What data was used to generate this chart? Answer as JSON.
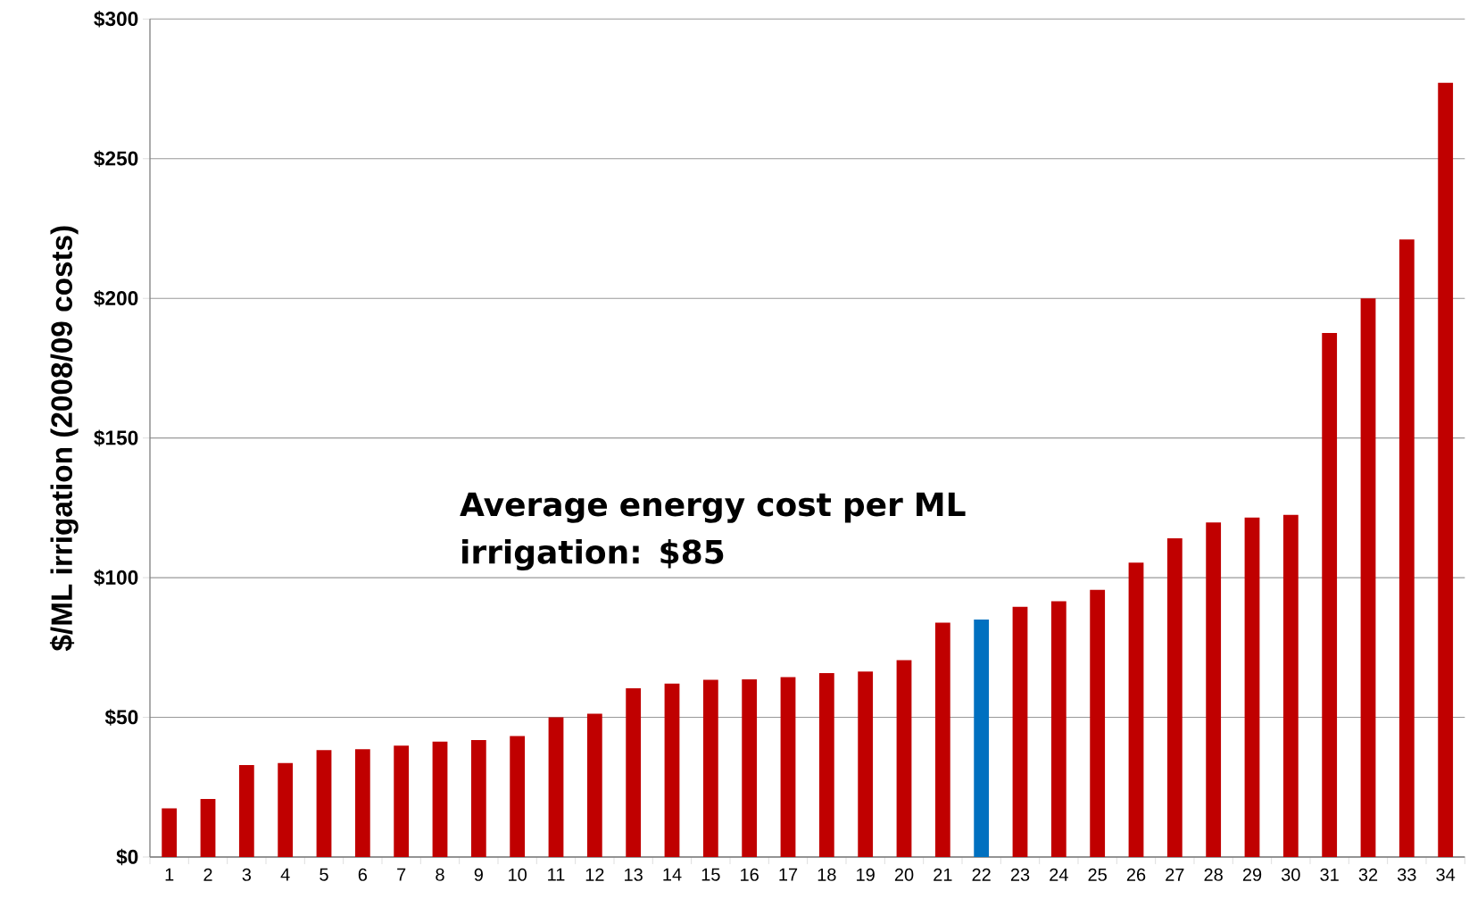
{
  "chart_data": {
    "type": "bar",
    "ylabel": "$/ML irrigation  (2008/09 costs)",
    "categories": [
      "1",
      "2",
      "3",
      "4",
      "5",
      "6",
      "7",
      "8",
      "9",
      "10",
      "11",
      "12",
      "13",
      "14",
      "15",
      "16",
      "17",
      "18",
      "19",
      "20",
      "21",
      "22",
      "23",
      "24",
      "25",
      "26",
      "27",
      "28",
      "29",
      "30",
      "31",
      "32",
      "33",
      "34"
    ],
    "values": [
      17.4,
      20.8,
      32.9,
      33.6,
      38.3,
      38.6,
      39.9,
      41.3,
      41.9,
      43.3,
      50,
      51.3,
      60.4,
      62.1,
      63.4,
      63.6,
      64.4,
      65.8,
      66.4,
      70.5,
      83.9,
      85,
      89.6,
      91.6,
      95.6,
      105.4,
      114.1,
      119.8,
      121.5,
      122.5,
      187.6,
      200,
      221.1,
      277.2
    ],
    "colors": [
      "#c00000",
      "#c00000",
      "#c00000",
      "#c00000",
      "#c00000",
      "#c00000",
      "#c00000",
      "#c00000",
      "#c00000",
      "#c00000",
      "#c00000",
      "#c00000",
      "#c00000",
      "#c00000",
      "#c00000",
      "#c00000",
      "#c00000",
      "#c00000",
      "#c00000",
      "#c00000",
      "#c00000",
      "#0070c0",
      "#c00000",
      "#c00000",
      "#c00000",
      "#c00000",
      "#c00000",
      "#c00000",
      "#c00000",
      "#c00000",
      "#c00000",
      "#c00000",
      "#c00000",
      "#c00000"
    ],
    "ylim": [
      0,
      300
    ],
    "yticks": [
      {
        "value": 0,
        "label": "$0"
      },
      {
        "value": 50,
        "label": "$50"
      },
      {
        "value": 100,
        "label": "$100"
      },
      {
        "value": 150,
        "label": "$150"
      },
      {
        "value": 200,
        "label": "$200"
      },
      {
        "value": 250,
        "label": "$250"
      },
      {
        "value": 300,
        "label": "$300"
      }
    ],
    "grid": "y",
    "annotations": [
      "Average energy  cost per ML irrigation: $85"
    ]
  }
}
